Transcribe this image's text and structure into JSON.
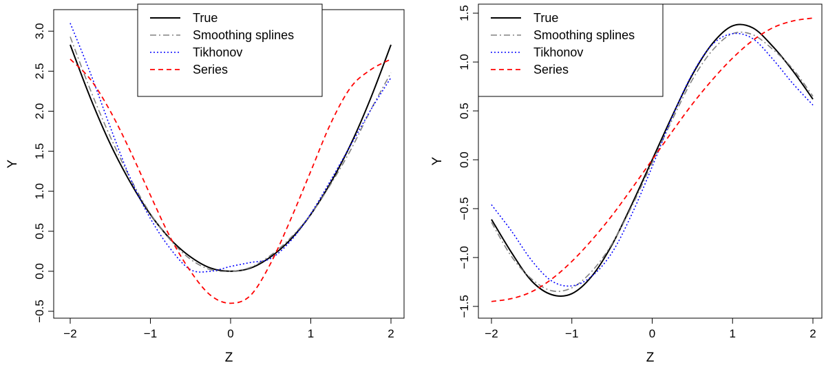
{
  "chart_data": [
    {
      "type": "line",
      "xlabel": "Z",
      "ylabel": "Y",
      "xlim": [
        -2.0,
        2.0
      ],
      "ylim": [
        -0.5,
        3.2
      ],
      "xticks": [
        -2,
        -1,
        0,
        1,
        2
      ],
      "xtick_labels": [
        "−2",
        "−1",
        "0",
        "1",
        "2"
      ],
      "yticks": [
        -0.5,
        0.0,
        0.5,
        1.0,
        1.5,
        2.0,
        2.5,
        3.0
      ],
      "ytick_labels": [
        "−0.5",
        "0.0",
        "0.5",
        "1.0",
        "1.5",
        "2.0",
        "2.5",
        "3.0"
      ],
      "legend": {
        "position": "top-center",
        "entries": [
          "True",
          "Smoothing splines",
          "Tikhonov",
          "Series"
        ]
      },
      "grid": false,
      "x": [
        -2.0,
        -1.75,
        -1.5,
        -1.25,
        -1.0,
        -0.75,
        -0.5,
        -0.25,
        0.0,
        0.25,
        0.5,
        0.75,
        1.0,
        1.25,
        1.5,
        1.75,
        2.0
      ],
      "series": [
        {
          "name": "True",
          "color": "#000000",
          "dash": "solid",
          "values": [
            2.83,
            2.17,
            1.59,
            1.11,
            0.71,
            0.4,
            0.18,
            0.04,
            0.0,
            0.04,
            0.18,
            0.4,
            0.71,
            1.11,
            1.59,
            2.17,
            2.83
          ]
        },
        {
          "name": "Smoothing splines",
          "color": "#808080",
          "dash": "dashdot",
          "values": [
            2.93,
            2.27,
            1.68,
            1.16,
            0.72,
            0.39,
            0.15,
            0.02,
            0.0,
            0.05,
            0.2,
            0.42,
            0.71,
            1.09,
            1.52,
            2.02,
            2.48
          ]
        },
        {
          "name": "Tikhonov",
          "color": "#0000ff",
          "dash": "dotted",
          "values": [
            3.1,
            2.48,
            1.8,
            1.16,
            0.66,
            0.28,
            0.02,
            0.0,
            0.06,
            0.11,
            0.16,
            0.38,
            0.72,
            1.14,
            1.58,
            2.02,
            2.42
          ]
        },
        {
          "name": "Series",
          "color": "#ff0000",
          "dash": "dashed",
          "values": [
            2.65,
            2.4,
            2.0,
            1.5,
            0.95,
            0.42,
            0.0,
            -0.3,
            -0.4,
            -0.3,
            0.1,
            0.65,
            1.25,
            1.85,
            2.3,
            2.52,
            2.65
          ]
        }
      ]
    },
    {
      "type": "line",
      "xlabel": "Z",
      "ylabel": "Y",
      "xlim": [
        -2.0,
        2.0
      ],
      "ylim": [
        -1.55,
        1.55
      ],
      "xticks": [
        -2,
        -1,
        0,
        1,
        2
      ],
      "xtick_labels": [
        "−2",
        "−1",
        "0",
        "1",
        "2"
      ],
      "yticks": [
        -1.5,
        -1.0,
        -0.5,
        0.0,
        0.5,
        1.0,
        1.5
      ],
      "ytick_labels": [
        "−1.5",
        "−1.0",
        "−0.5",
        "0.0",
        "0.5",
        "1.0",
        "1.5"
      ],
      "legend": {
        "position": "top-left",
        "entries": [
          "True",
          "Smoothing splines",
          "Tikhonov",
          "Series"
        ]
      },
      "grid": false,
      "x": [
        -2.0,
        -1.75,
        -1.5,
        -1.25,
        -1.0,
        -0.75,
        -0.5,
        -0.25,
        0.0,
        0.25,
        0.5,
        0.75,
        1.0,
        1.25,
        1.5,
        1.75,
        2.0
      ],
      "series": [
        {
          "name": "True",
          "color": "#000000",
          "dash": "solid",
          "values": [
            -0.61,
            -0.95,
            -1.24,
            -1.38,
            -1.37,
            -1.19,
            -0.87,
            -0.45,
            0.0,
            0.45,
            0.87,
            1.19,
            1.37,
            1.35,
            1.16,
            0.91,
            0.62
          ]
        },
        {
          "name": "Smoothing splines",
          "color": "#808080",
          "dash": "dashdot",
          "values": [
            -0.64,
            -0.99,
            -1.22,
            -1.34,
            -1.31,
            -1.14,
            -0.86,
            -0.47,
            -0.03,
            0.41,
            0.82,
            1.12,
            1.29,
            1.28,
            1.13,
            0.93,
            0.65
          ]
        },
        {
          "name": "Tikhonov",
          "color": "#0000ff",
          "dash": "dotted",
          "values": [
            -0.46,
            -0.73,
            -1.03,
            -1.24,
            -1.29,
            -1.19,
            -0.95,
            -0.55,
            -0.07,
            0.44,
            0.88,
            1.18,
            1.29,
            1.24,
            1.03,
            0.78,
            0.56
          ]
        },
        {
          "name": "Series",
          "color": "#ff0000",
          "dash": "dashed",
          "values": [
            -1.45,
            -1.42,
            -1.35,
            -1.22,
            -1.04,
            -0.82,
            -0.57,
            -0.29,
            0.0,
            0.29,
            0.57,
            0.82,
            1.04,
            1.22,
            1.35,
            1.42,
            1.45
          ]
        }
      ]
    }
  ]
}
